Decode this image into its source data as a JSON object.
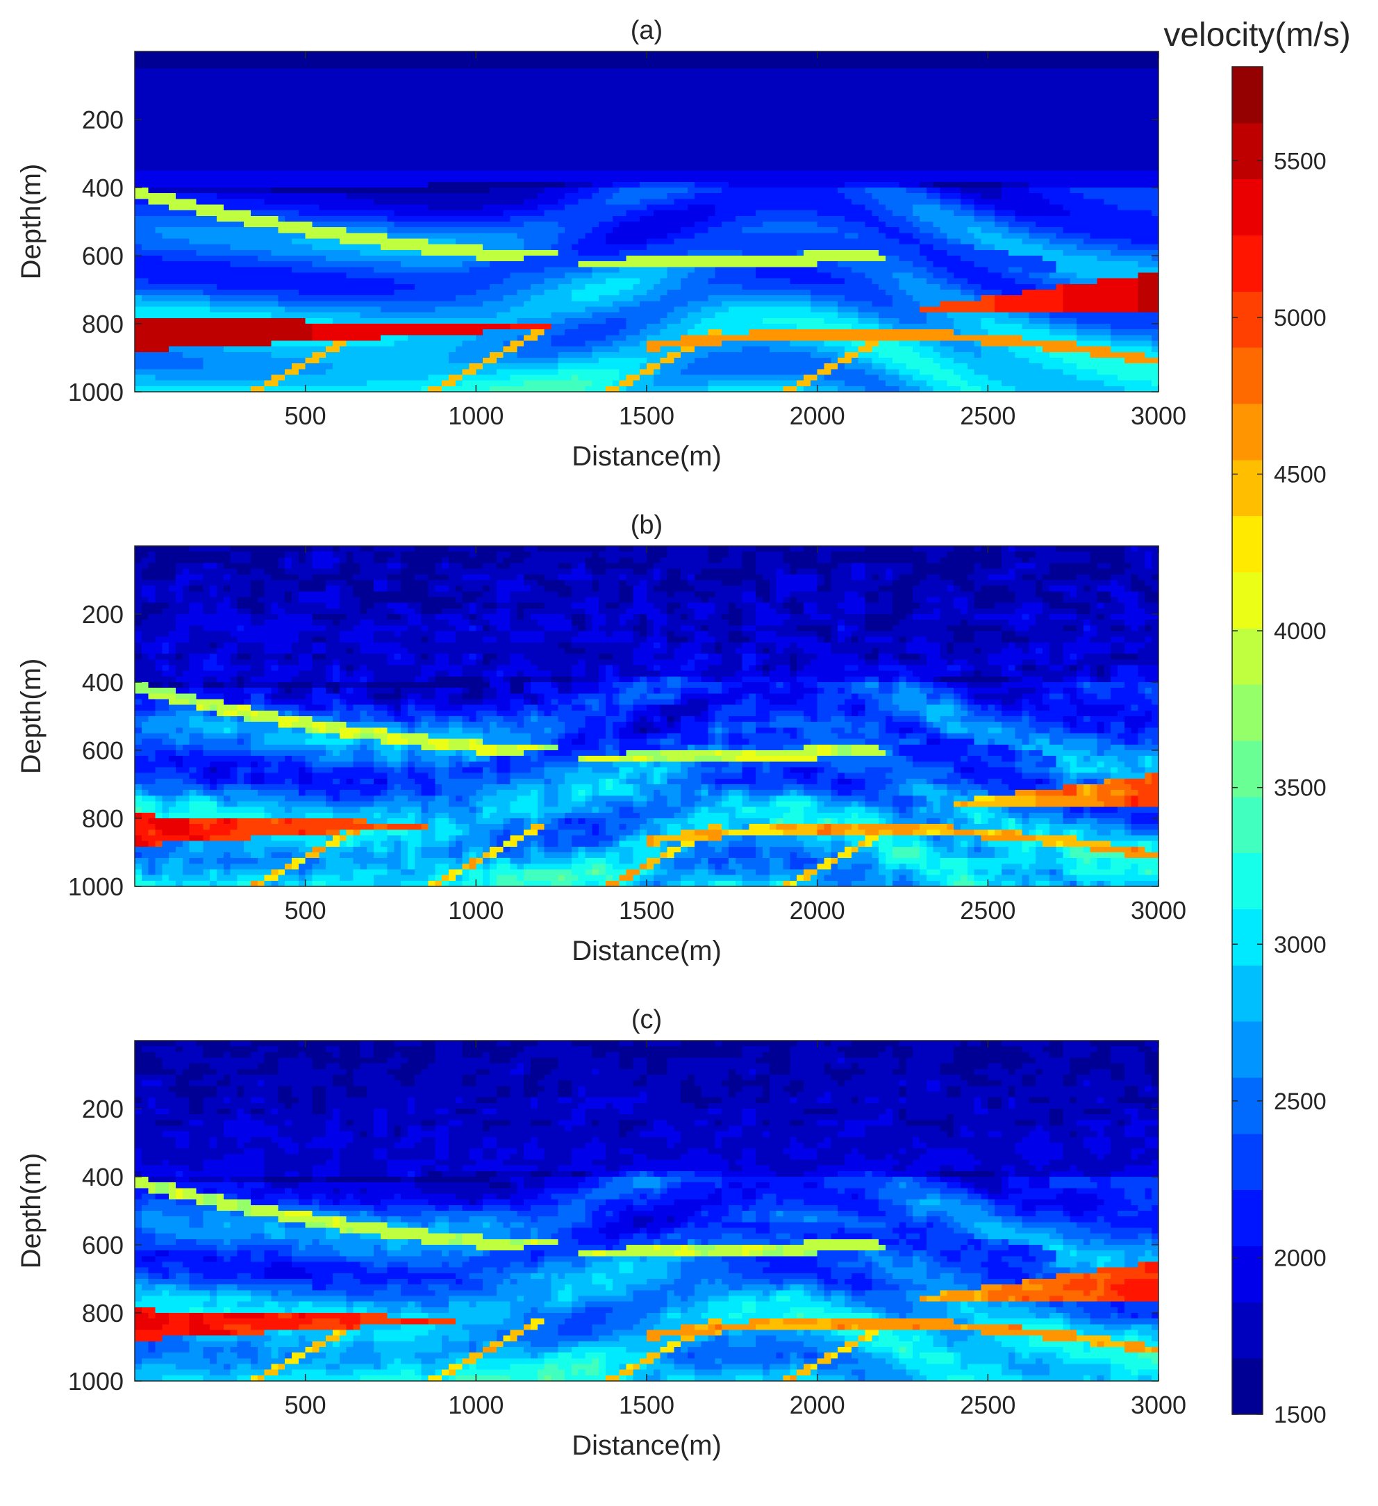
{
  "chart_data": [
    {
      "type": "heatmap",
      "title": "(a)",
      "xlabel": "Distance(m)",
      "ylabel": "Depth(m)",
      "xlim": [
        0,
        3000
      ],
      "ylim": [
        0,
        1000
      ],
      "y_reversed": true,
      "xticks": [
        500,
        1000,
        1500,
        2000,
        2500,
        3000
      ],
      "yticks": [
        200,
        400,
        600,
        800,
        1000
      ],
      "description_source": "true velocity model",
      "colorscale": "jet",
      "noise": 0.0,
      "features": {
        "water_layer_depth": 400,
        "high_velocity_wedge_left": {
          "x": [
            0,
            1300
          ],
          "depth": [
            780,
            880
          ],
          "value": 5600
        },
        "high_velocity_wedge_right": {
          "x": [
            2300,
            3000
          ],
          "depth": [
            660,
            760
          ],
          "value": 5500
        },
        "anticline_crest": {
          "x": 1900,
          "depth": 100
        }
      }
    },
    {
      "type": "heatmap",
      "title": "(b)",
      "xlabel": "Distance(m)",
      "ylabel": "Depth(m)",
      "xlim": [
        0,
        3000
      ],
      "ylim": [
        0,
        1000
      ],
      "y_reversed": true,
      "xticks": [
        500,
        1000,
        1500,
        2000,
        2500,
        3000
      ],
      "yticks": [
        200,
        400,
        600,
        800,
        1000
      ],
      "colorscale": "jet",
      "noise": 0.09,
      "features": {
        "water_layer_depth": 400,
        "high_velocity_wedge_left": {
          "x": [
            0,
            1100
          ],
          "depth": [
            790,
            880
          ],
          "value": 5200
        },
        "high_velocity_wedge_right": {
          "x": [
            2400,
            3000
          ],
          "depth": [
            680,
            760
          ],
          "value": 5000
        },
        "anticline_crest": {
          "x": 1900,
          "depth": 100
        }
      }
    },
    {
      "type": "heatmap",
      "title": "(c)",
      "xlabel": "Distance(m)",
      "ylabel": "Depth(m)",
      "xlim": [
        0,
        3000
      ],
      "ylim": [
        0,
        1000
      ],
      "y_reversed": true,
      "xticks": [
        500,
        1000,
        1500,
        2000,
        2500,
        3000
      ],
      "yticks": [
        200,
        400,
        600,
        800,
        1000
      ],
      "colorscale": "jet",
      "noise": 0.06,
      "features": {
        "water_layer_depth": 400,
        "high_velocity_wedge_left": {
          "x": [
            0,
            1200
          ],
          "depth": [
            790,
            880
          ],
          "value": 5300
        },
        "high_velocity_wedge_right": {
          "x": [
            2300,
            3000
          ],
          "depth": [
            660,
            760
          ],
          "value": 5100
        },
        "anticline_crest": {
          "x": 1900,
          "depth": 100
        }
      }
    }
  ],
  "colorbar": {
    "title": "velocity(m/s)",
    "min": 1500,
    "max": 5800,
    "ticks": [
      1500,
      2000,
      2500,
      3000,
      3500,
      4000,
      4500,
      5000,
      5500
    ],
    "levels": 24,
    "colorscale": "jet"
  }
}
